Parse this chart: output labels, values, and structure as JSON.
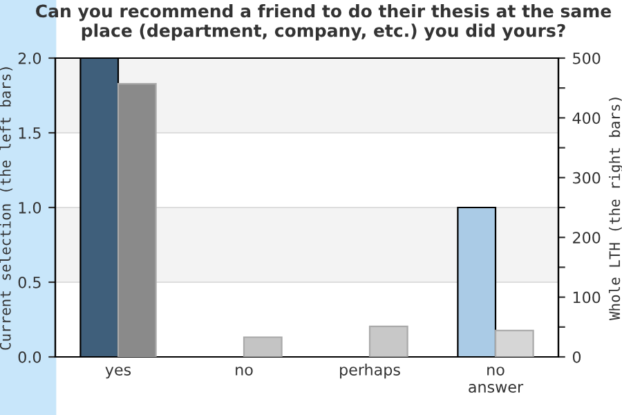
{
  "chart_data": {
    "type": "bar",
    "title": "Can you recommend a friend to do their thesis at the same place (department, company, etc.) you did yours?",
    "categories": [
      "yes",
      "no",
      "perhaps",
      "no\nanswer"
    ],
    "series": [
      {
        "values": [
          2,
          0,
          0,
          1
        ],
        "colors": [
          "#3f5f7b",
          "#3f5f7b",
          "#3f5f7b",
          "#aacbe6"
        ]
      },
      {
        "values": [
          457,
          33,
          51,
          44
        ],
        "colors": [
          "#8a8a8a",
          "#c4c4c4",
          "#c8c8c8",
          "#d6d6d6"
        ],
        "axis": "y2"
      }
    ],
    "ylabel": "Current selection (the left bars)",
    "y2label": "Whole LTH (the right bars)",
    "ylim": [
      0,
      2.0
    ],
    "yticks": [
      {
        "value": 0,
        "label": "0.0"
      },
      0.5,
      {
        "value": 1,
        "label": "1.0"
      },
      1.5,
      {
        "value": 2,
        "label": "2.0"
      }
    ],
    "y2lim": [
      0,
      500
    ],
    "y2ticks": [
      0,
      {
        "value": 50,
        "label": null
      },
      100,
      {
        "value": 150,
        "label": null
      },
      200,
      {
        "value": 250,
        "label": null
      },
      300,
      {
        "value": 350,
        "label": null
      },
      400,
      {
        "value": 450,
        "label": null
      },
      500
    ],
    "bands": [
      {
        "axis": "y",
        "from": 0.5,
        "to": 1.0,
        "color": "#f3f3f3"
      },
      {
        "axis": "y",
        "from": 1.5,
        "to": 2.0,
        "color": "#f3f3f3"
      }
    ],
    "grid": "y",
    "legend": false
  }
}
